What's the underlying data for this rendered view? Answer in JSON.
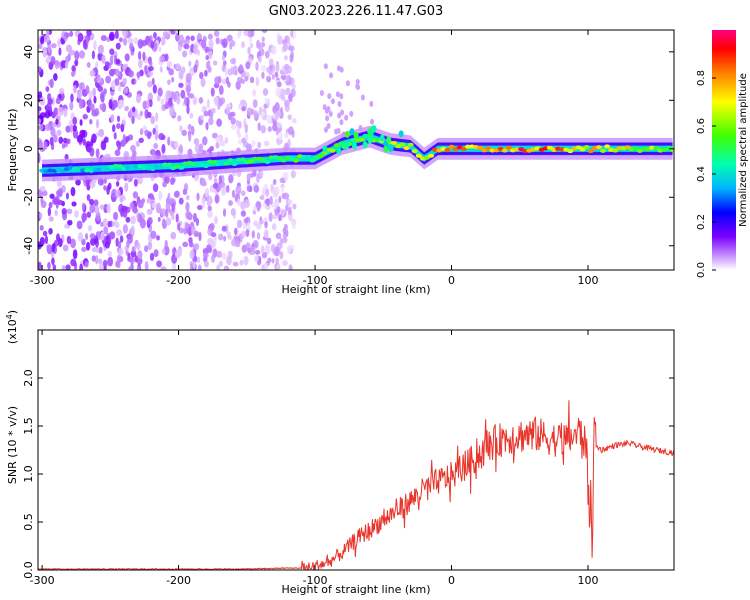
{
  "title": "GN03.2023.226.11.47.G03",
  "chart_data": [
    {
      "type": "heatmap",
      "xlabel": "Height of straight line (km)",
      "ylabel": "Frequency (Hz)",
      "xlim": [
        -303,
        163
      ],
      "ylim": [
        -50,
        49
      ],
      "x_ticks": [
        -300,
        -200,
        -100,
        0,
        100
      ],
      "x_tick_labels": [
        "-300",
        "-200",
        "-100",
        "0",
        "100"
      ],
      "y_ticks": [
        -40,
        -20,
        0,
        20,
        40
      ],
      "y_tick_labels": [
        "-40",
        "-20",
        "0",
        "20",
        "40"
      ],
      "colorbar": {
        "label": "Normalized spectral amplitude",
        "range": [
          0,
          1
        ],
        "ticks": [
          0.0,
          0.2,
          0.4,
          0.6,
          0.8
        ],
        "tick_labels": [
          "0.0",
          "0.2",
          "0.4",
          "0.6",
          "0.8"
        ]
      },
      "ridge": {
        "x": [
          -300,
          -250,
          -200,
          -150,
          -120,
          -100,
          -80,
          -60,
          -45,
          -30,
          -20,
          -10,
          0,
          50,
          90,
          100,
          163
        ],
        "frequency": [
          -9,
          -8,
          -7,
          -5,
          -4,
          -4,
          2,
          5,
          2,
          1,
          -4,
          0,
          0,
          0,
          0,
          0,
          0
        ],
        "amplitude": [
          0.35,
          0.45,
          0.5,
          0.55,
          0.55,
          0.55,
          0.6,
          0.55,
          0.7,
          0.8,
          0.7,
          0.9,
          0.9,
          0.9,
          0.85,
          0.8,
          0.6
        ]
      },
      "noise_region_x": [
        -303,
        -115
      ]
    },
    {
      "type": "line",
      "xlabel": "Height of straight line (km)",
      "ylabel": "SNR (10 * v/v)",
      "y_scale_label": "(x10^4)",
      "xlim": [
        -303,
        163
      ],
      "ylim": [
        0,
        2.5
      ],
      "x_ticks": [
        -300,
        -200,
        -100,
        0,
        100
      ],
      "x_tick_labels": [
        "-300",
        "-200",
        "-100",
        "0",
        "100"
      ],
      "y_ticks": [
        0,
        0.5,
        1.0,
        1.5,
        2.0
      ],
      "y_tick_labels": [
        "0.0",
        "0.5",
        "1.0",
        "1.5",
        "2.0"
      ],
      "series": [
        {
          "color": "#e8342b",
          "x": [
            -303,
            -250,
            -200,
            -150,
            -120,
            -105,
            -100,
            -90,
            -80,
            -70,
            -60,
            -50,
            -40,
            -30,
            -20,
            -10,
            0,
            10,
            20,
            30,
            40,
            50,
            60,
            70,
            80,
            90,
            95,
            100,
            102,
            105,
            110,
            120,
            130,
            140,
            150,
            163
          ],
          "y": [
            0.01,
            0.01,
            0.01,
            0.01,
            0.02,
            0.02,
            0.04,
            0.08,
            0.18,
            0.32,
            0.42,
            0.52,
            0.62,
            0.72,
            0.84,
            0.92,
            0.98,
            1.08,
            1.2,
            1.32,
            1.38,
            1.4,
            1.42,
            1.38,
            1.35,
            1.4,
            1.45,
            1.2,
            0.35,
            1.3,
            1.25,
            1.3,
            1.32,
            1.28,
            1.25,
            1.22
          ]
        }
      ]
    }
  ]
}
